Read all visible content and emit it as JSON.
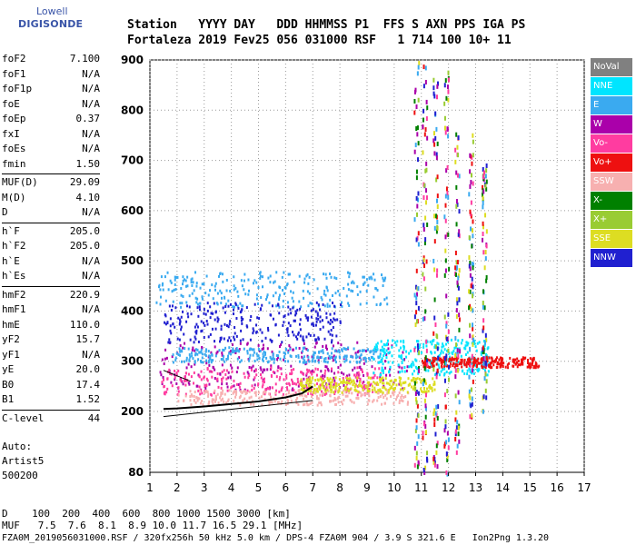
{
  "logo": {
    "line1": "Lowell",
    "line2": "DIGISONDE"
  },
  "header": {
    "line1": "Station   YYYY DAY   DDD HHMMSS P1  FFS S AXN PPS IGA PS",
    "line2": "Fortaleza 2019 Fev25 056 031000 RSF   1 714 100 10+ 11"
  },
  "params": [
    {
      "k": "foF2",
      "v": "7.100"
    },
    {
      "k": "foF1",
      "v": "N/A"
    },
    {
      "k": "foF1p",
      "v": "N/A"
    },
    {
      "k": "foE",
      "v": "N/A"
    },
    {
      "k": "foEp",
      "v": "0.37"
    },
    {
      "k": "fxI",
      "v": "N/A"
    },
    {
      "k": "foEs",
      "v": "N/A"
    },
    {
      "k": "fmin",
      "v": "1.50"
    },
    {
      "k": "MUF(D)",
      "v": "29.09"
    },
    {
      "k": "M(D)",
      "v": "4.10"
    },
    {
      "k": "D",
      "v": "N/A"
    },
    {
      "k": "h`F",
      "v": "205.0"
    },
    {
      "k": "h`F2",
      "v": "205.0"
    },
    {
      "k": "h`E",
      "v": "N/A"
    },
    {
      "k": "h`Es",
      "v": "N/A"
    },
    {
      "k": "hmF2",
      "v": "220.9"
    },
    {
      "k": "hmF1",
      "v": "N/A"
    },
    {
      "k": "hmE",
      "v": "110.0"
    },
    {
      "k": "yF2",
      "v": "15.7"
    },
    {
      "k": "yF1",
      "v": "N/A"
    },
    {
      "k": "yE",
      "v": "20.0"
    },
    {
      "k": "B0",
      "v": "17.4"
    },
    {
      "k": "B1",
      "v": "1.52"
    },
    {
      "k": "C-level",
      "v": "44"
    }
  ],
  "auto": {
    "line1": "Auto:",
    "line2": "Artist5",
    "line3": "500200"
  },
  "legend": [
    {
      "label": "NoVal",
      "color": "#808080"
    },
    {
      "label": "NNE",
      "color": "#00e5ff"
    },
    {
      "label": "E",
      "color": "#3aaaf0"
    },
    {
      "label": "W",
      "color": "#aa00aa"
    },
    {
      "label": "Vo-",
      "color": "#ff3ca0"
    },
    {
      "label": "Vo+",
      "color": "#ee1010"
    },
    {
      "label": "SSW",
      "color": "#f7b0b0"
    },
    {
      "label": "X-",
      "color": "#008000"
    },
    {
      "label": "X+",
      "color": "#99cc33"
    },
    {
      "label": "SSE",
      "color": "#dddd22"
    },
    {
      "label": "NNW",
      "color": "#2020d0"
    }
  ],
  "chart_data": {
    "type": "scatter",
    "title": "",
    "xlabel": "",
    "ylabel": "",
    "xlim": [
      1,
      17
    ],
    "ylim": [
      80,
      900
    ],
    "x_ticks": [
      "1",
      "2",
      "3",
      "4",
      "5",
      "6",
      "7",
      "8",
      "9",
      "10",
      "11",
      "12",
      "13",
      "14",
      "15",
      "16",
      "17"
    ],
    "y_ticks": [
      "200",
      "300",
      "400",
      "500",
      "600",
      "700",
      "800",
      "900"
    ],
    "y_tick_values": [
      200,
      300,
      400,
      500,
      600,
      700,
      800,
      900
    ],
    "y_extra_ticks": [
      {
        "value": 80,
        "label": "80"
      }
    ],
    "grid": true,
    "legend_position": "right",
    "trace": {
      "name": "h'F trace",
      "x": [
        1.5,
        2.0,
        3.0,
        4.0,
        5.0,
        6.0,
        6.6,
        7.0
      ],
      "y": [
        205,
        206,
        210,
        215,
        220,
        228,
        236,
        250
      ]
    },
    "profile_lines": [
      {
        "x": [
          1.5,
          7.0
        ],
        "y": [
          190,
          222
        ]
      },
      {
        "x": [
          1.5,
          2.5
        ],
        "y": [
          282,
          260
        ]
      }
    ],
    "echo_bands": [
      {
        "series": "W",
        "x": [
          1.3,
          10.5
        ],
        "y": [
          245,
          340
        ]
      },
      {
        "series": "Vo-",
        "x": [
          1.4,
          9.5
        ],
        "y": [
          235,
          290
        ]
      },
      {
        "series": "E",
        "x": [
          1.8,
          9.5
        ],
        "y": [
          300,
          330
        ]
      },
      {
        "series": "E",
        "x": [
          1.2,
          9.8
        ],
        "y": [
          410,
          480
        ]
      },
      {
        "series": "NNE",
        "x": [
          9.2,
          13.5
        ],
        "y": [
          275,
          345
        ]
      },
      {
        "series": "Vo+",
        "x": [
          11.0,
          15.3
        ],
        "y": [
          290,
          310
        ]
      },
      {
        "series": "SSW",
        "x": [
          2.0,
          10.5
        ],
        "y": [
          215,
          245
        ]
      },
      {
        "series": "SSE",
        "x": [
          6.5,
          11.5
        ],
        "y": [
          240,
          270
        ]
      },
      {
        "series": "NNW",
        "x": [
          1.5,
          8.0
        ],
        "y": [
          340,
          420
        ]
      }
    ],
    "vertical_bands": [
      {
        "x": 10.8,
        "y": [
          80,
          900
        ]
      },
      {
        "x": 11.1,
        "y": [
          80,
          900
        ]
      },
      {
        "x": 11.5,
        "y": [
          80,
          880
        ]
      },
      {
        "x": 11.9,
        "y": [
          80,
          880
        ]
      },
      {
        "x": 12.3,
        "y": [
          120,
          760
        ]
      },
      {
        "x": 12.8,
        "y": [
          180,
          760
        ]
      },
      {
        "x": 13.3,
        "y": [
          200,
          700
        ]
      }
    ]
  },
  "bottom": {
    "line1": "D    100  200  400  600  800 1000 1500 3000 [km]",
    "line2": "MUF   7.5  7.6  8.1  8.9 10.0 11.7 16.5 29.1 [MHz]",
    "line3": "FZA0M_2019056031000.RSF / 320fx256h 50 kHz 5.0 km / DPS-4 FZA0M 904 / 3.9 S 321.6 E   Ion2Png 1.3.20"
  }
}
